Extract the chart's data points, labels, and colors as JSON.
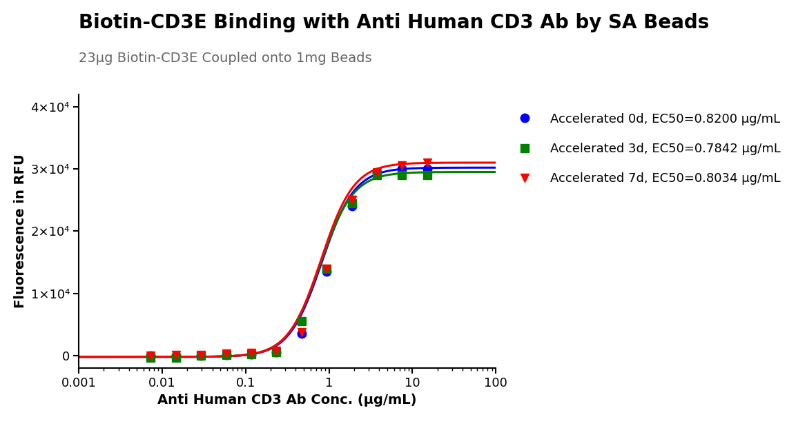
{
  "title": "Biotin-CD3E Binding with Anti Human CD3 Ab by SA Beads",
  "subtitle": "23μg Biotin-CD3E Coupled onto 1mg Beads",
  "xlabel": "Anti Human CD3 Ab Conc. (μg/mL)",
  "ylabel": "Fluorescence in RFU",
  "ylim": [
    -2000,
    42000
  ],
  "yticks": [
    0,
    10000,
    20000,
    30000,
    40000
  ],
  "ytick_labels": [
    "0",
    "1×10⁴",
    "2×10⁴",
    "3×10⁴",
    "4×10⁴"
  ],
  "xtick_positions": [
    0.001,
    0.01,
    0.1,
    1,
    10,
    100
  ],
  "xtick_labels": [
    "0.001",
    "0.01",
    "0.1",
    "1",
    "10",
    "100"
  ],
  "series": [
    {
      "label": "Accelerated 0d, EC50=0.8200 μg/mL",
      "color": "#0000FF",
      "marker": "o",
      "ec50": 0.82,
      "bottom": -200,
      "top": 30200,
      "hill": 2.2,
      "data_x": [
        0.0073,
        0.0146,
        0.0293,
        0.0586,
        0.117,
        0.234,
        0.469,
        0.938,
        1.875,
        3.75,
        7.5,
        15.0
      ],
      "data_y": [
        0,
        0,
        50,
        100,
        200,
        500,
        3500,
        13500,
        24000,
        29500,
        30000,
        30000
      ]
    },
    {
      "label": "Accelerated 3d, EC50=0.7842 μg/mL",
      "color": "#008000",
      "marker": "s",
      "ec50": 0.7842,
      "bottom": -200,
      "top": 29500,
      "hill": 2.2,
      "data_x": [
        0.0073,
        0.0146,
        0.0293,
        0.0586,
        0.117,
        0.234,
        0.469,
        0.938,
        1.875,
        3.75,
        7.5,
        15.0
      ],
      "data_y": [
        -300,
        -300,
        50,
        100,
        200,
        600,
        5500,
        14000,
        24500,
        29000,
        29000,
        29000
      ]
    },
    {
      "label": "Accelerated 7d, EC50=0.8034 μg/mL",
      "color": "#FF0000",
      "marker": "v",
      "ec50": 0.8034,
      "bottom": -200,
      "top": 31000,
      "hill": 2.2,
      "data_x": [
        0.0073,
        0.0146,
        0.0293,
        0.0586,
        0.117,
        0.234,
        0.469,
        0.938,
        1.875,
        3.75,
        7.5,
        15.0
      ],
      "data_y": [
        0,
        100,
        150,
        300,
        400,
        800,
        3800,
        14000,
        25000,
        29500,
        30500,
        31000
      ]
    }
  ],
  "background_color": "#FFFFFF",
  "title_fontsize": 20,
  "subtitle_fontsize": 14,
  "axis_label_fontsize": 14,
  "tick_fontsize": 13,
  "legend_fontsize": 13,
  "line_width": 2.2,
  "marker_size": 9
}
